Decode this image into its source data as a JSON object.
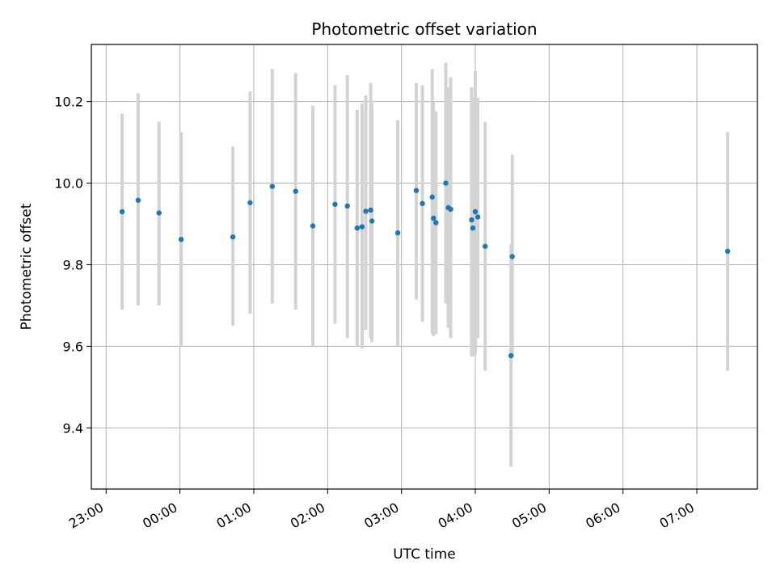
{
  "chart_data": {
    "type": "scatter",
    "title": "Photometric offset variation",
    "xlabel": "UTC time",
    "ylabel": "Photometric offset",
    "x_ticks": [
      "23:00",
      "00:00",
      "01:00",
      "02:00",
      "03:00",
      "04:00",
      "05:00",
      "06:00",
      "07:00"
    ],
    "x_tick_hours": [
      -1,
      0,
      1,
      2,
      3,
      4,
      5,
      6,
      7
    ],
    "xlim_hours": [
      -1.2,
      7.82
    ],
    "y_ticks": [
      "9.4",
      "9.6",
      "9.8",
      "10.0",
      "10.2"
    ],
    "y_tick_values": [
      9.4,
      9.6,
      9.8,
      10.0,
      10.2
    ],
    "ylim": [
      9.25,
      10.34
    ],
    "grid": true,
    "point_color": "#1f77b4",
    "errorbar_color": "#d3d3d3",
    "points": [
      {
        "time": "23:13",
        "y": 9.93,
        "yerr_low": 9.69,
        "yerr_high": 10.17
      },
      {
        "time": "23:26",
        "y": 9.958,
        "yerr_low": 9.7,
        "yerr_high": 10.22
      },
      {
        "time": "23:43",
        "y": 9.927,
        "yerr_low": 9.7,
        "yerr_high": 10.15
      },
      {
        "time": "00:01",
        "y": 9.862,
        "yerr_low": 9.6,
        "yerr_high": 10.125
      },
      {
        "time": "00:43",
        "y": 9.868,
        "yerr_low": 9.65,
        "yerr_high": 10.09
      },
      {
        "time": "00:57",
        "y": 9.952,
        "yerr_low": 9.68,
        "yerr_high": 10.225
      },
      {
        "time": "01:15",
        "y": 9.992,
        "yerr_low": 9.705,
        "yerr_high": 10.28
      },
      {
        "time": "01:34",
        "y": 9.98,
        "yerr_low": 9.69,
        "yerr_high": 10.27
      },
      {
        "time": "01:48",
        "y": 9.895,
        "yerr_low": 9.6,
        "yerr_high": 10.19
      },
      {
        "time": "02:06",
        "y": 9.948,
        "yerr_low": 9.655,
        "yerr_high": 10.24
      },
      {
        "time": "02:16",
        "y": 9.944,
        "yerr_low": 9.62,
        "yerr_high": 10.265
      },
      {
        "time": "02:24",
        "y": 9.89,
        "yerr_low": 9.6,
        "yerr_high": 10.18
      },
      {
        "time": "02:28",
        "y": 9.893,
        "yerr_low": 9.595,
        "yerr_high": 10.195
      },
      {
        "time": "02:31",
        "y": 9.931,
        "yerr_low": 9.64,
        "yerr_high": 10.215
      },
      {
        "time": "02:35",
        "y": 9.934,
        "yerr_low": 9.62,
        "yerr_high": 10.245
      },
      {
        "time": "02:36",
        "y": 9.907,
        "yerr_low": 9.61,
        "yerr_high": 10.195
      },
      {
        "time": "02:57",
        "y": 9.878,
        "yerr_low": 9.6,
        "yerr_high": 10.155
      },
      {
        "time": "03:12",
        "y": 9.982,
        "yerr_low": 9.715,
        "yerr_high": 10.245
      },
      {
        "time": "03:17",
        "y": 9.95,
        "yerr_low": 9.66,
        "yerr_high": 10.24
      },
      {
        "time": "03:25",
        "y": 9.966,
        "yerr_low": 9.63,
        "yerr_high": 10.28
      },
      {
        "time": "03:26",
        "y": 9.914,
        "yerr_low": 9.625,
        "yerr_high": 10.2
      },
      {
        "time": "03:28",
        "y": 9.903,
        "yerr_low": 9.63,
        "yerr_high": 10.175
      },
      {
        "time": "03:36",
        "y": 10.0,
        "yerr_low": 9.705,
        "yerr_high": 10.295
      },
      {
        "time": "03:38",
        "y": 9.94,
        "yerr_low": 9.645,
        "yerr_high": 10.235
      },
      {
        "time": "03:40",
        "y": 9.936,
        "yerr_low": 9.62,
        "yerr_high": 10.26
      },
      {
        "time": "03:57",
        "y": 9.91,
        "yerr_low": 9.575,
        "yerr_high": 10.235
      },
      {
        "time": "03:58",
        "y": 9.89,
        "yerr_low": 9.575,
        "yerr_high": 10.21
      },
      {
        "time": "04:00",
        "y": 9.93,
        "yerr_low": 9.58,
        "yerr_high": 10.275
      },
      {
        "time": "04:02",
        "y": 9.917,
        "yerr_low": 9.62,
        "yerr_high": 10.21
      },
      {
        "time": "04:08",
        "y": 9.845,
        "yerr_low": 9.54,
        "yerr_high": 10.15
      },
      {
        "time": "04:29",
        "y": 9.577,
        "yerr_low": 9.305,
        "yerr_high": 9.85
      },
      {
        "time": "04:30",
        "y": 9.82,
        "yerr_low": 9.575,
        "yerr_high": 10.07
      },
      {
        "time": "07:25",
        "y": 9.833,
        "yerr_low": 9.54,
        "yerr_high": 10.125
      }
    ]
  }
}
